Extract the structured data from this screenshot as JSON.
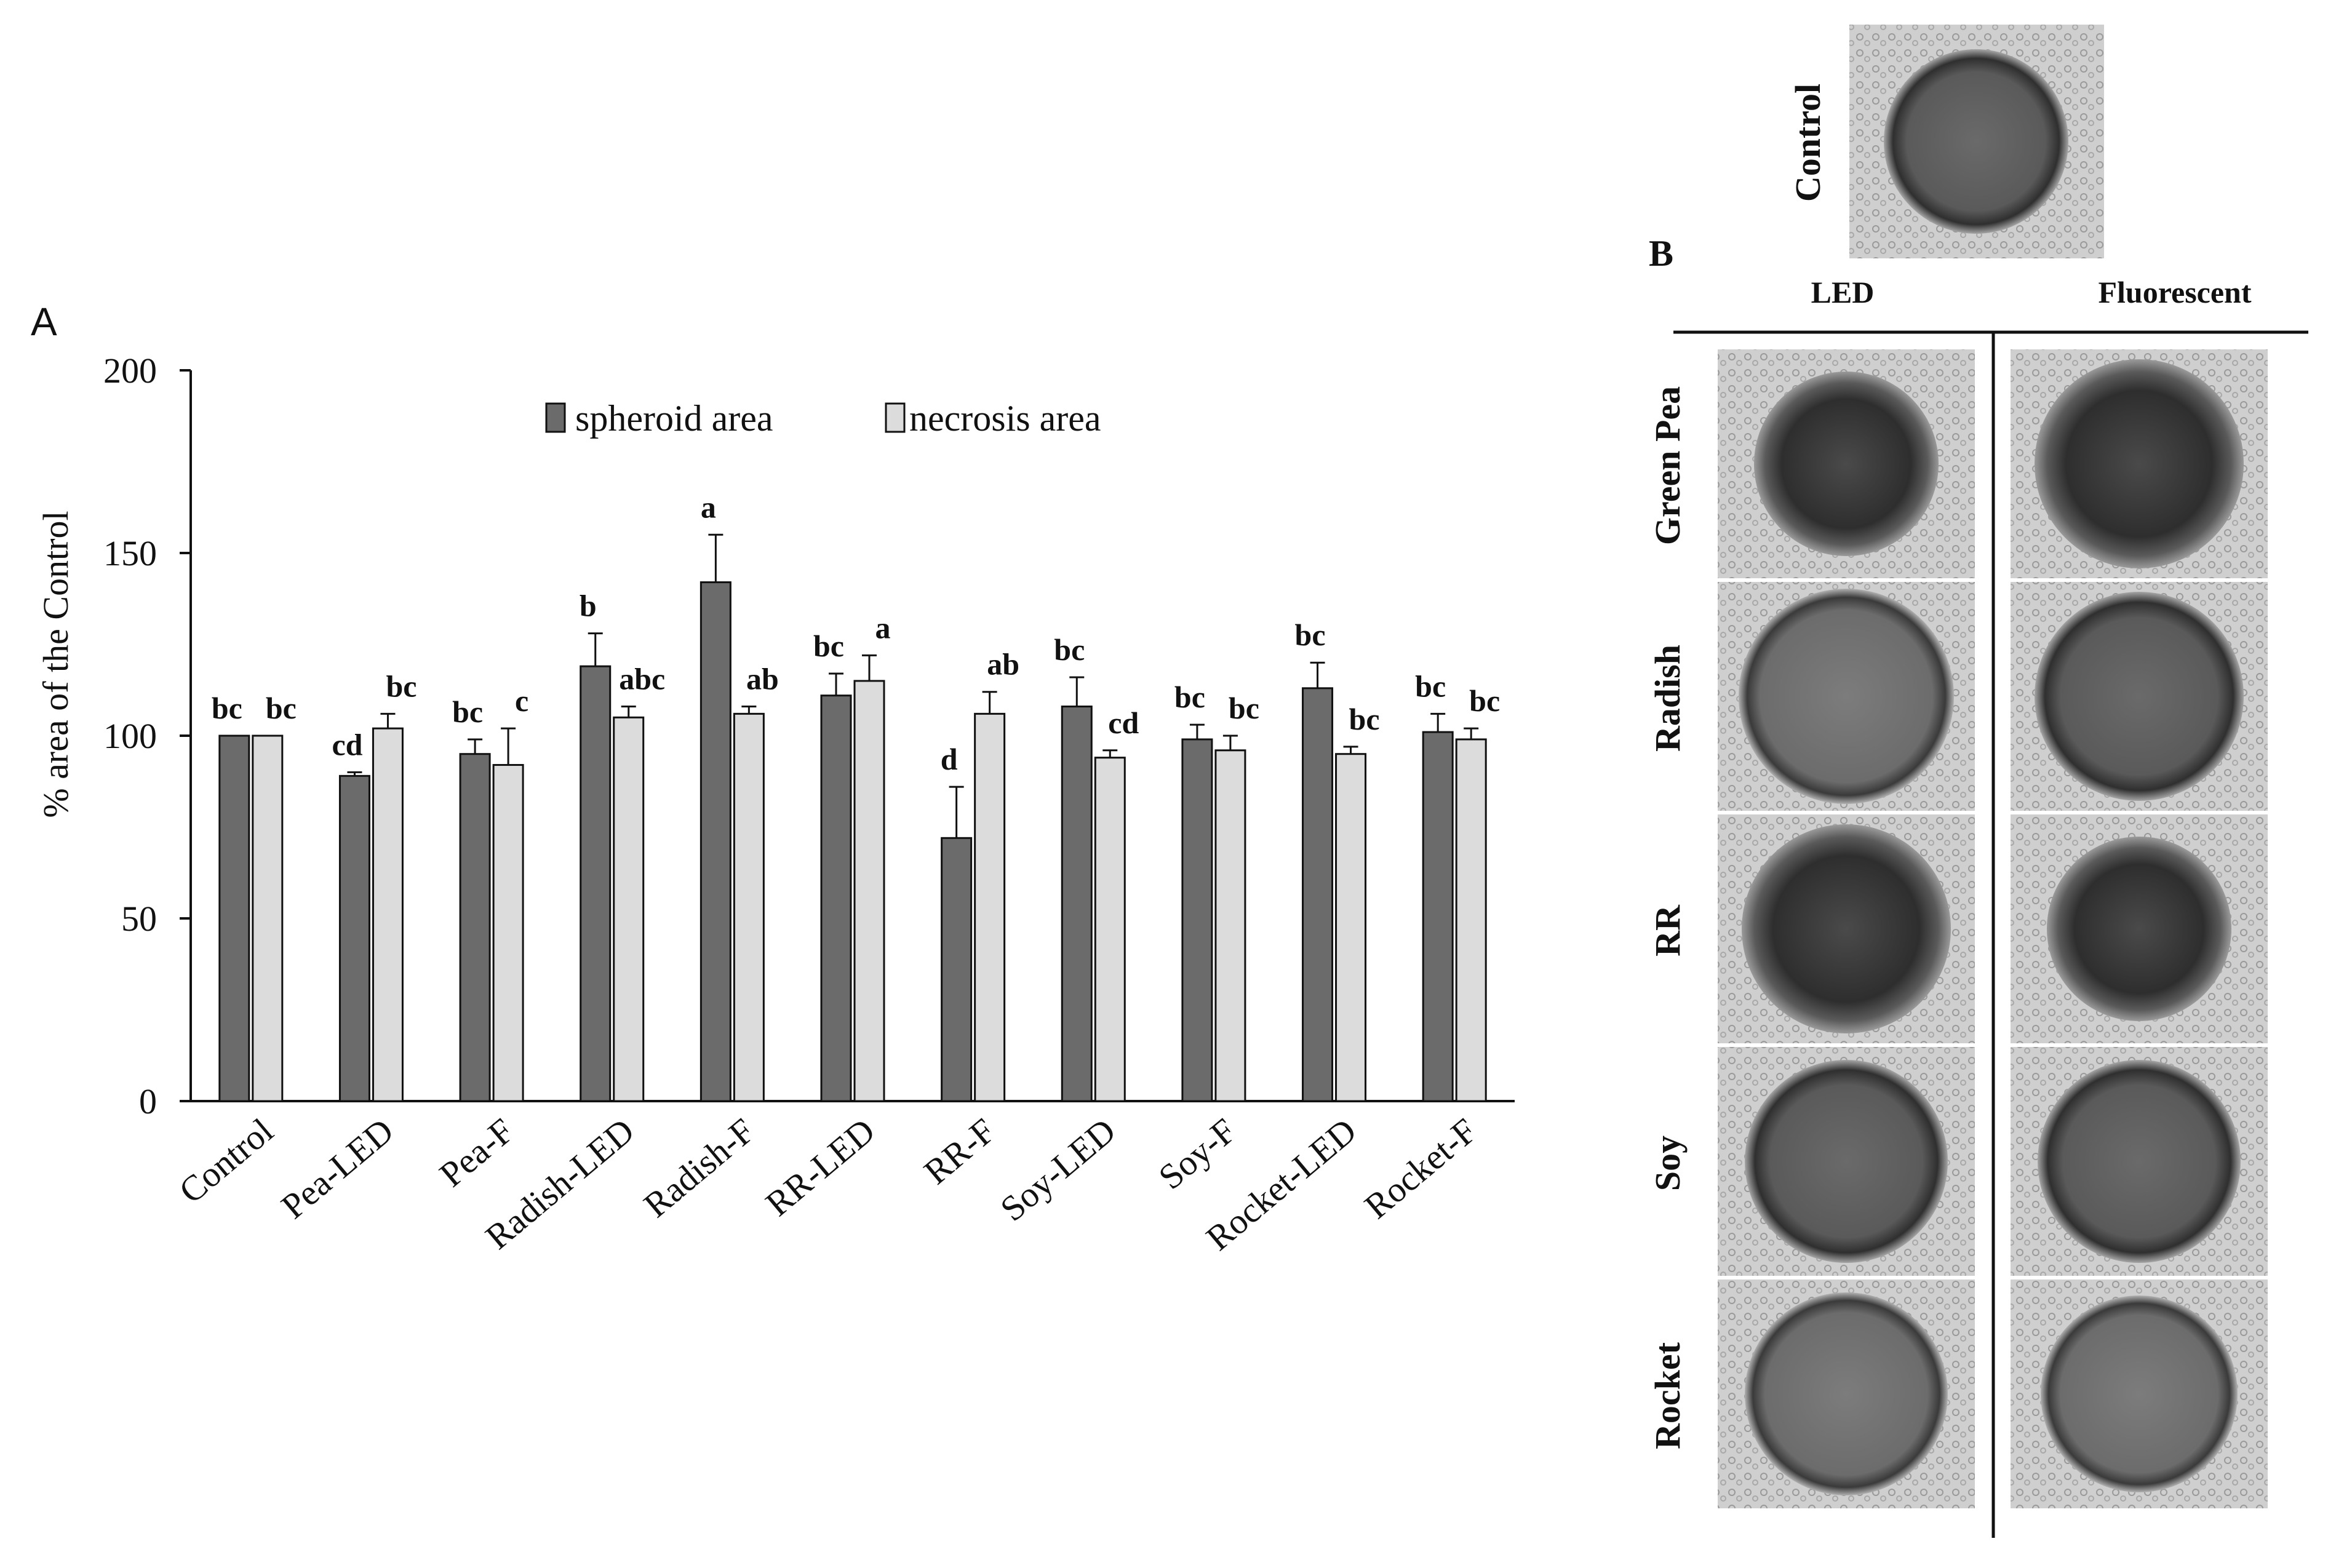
{
  "panel_a": {
    "letter": "A",
    "chart_data": {
      "type": "bar",
      "title": "",
      "xlabel": "",
      "ylabel": "% area of the Control",
      "ylim": [
        0,
        200
      ],
      "yticks": [
        0,
        50,
        100,
        150,
        200
      ],
      "grid": false,
      "legend_position": "top-center",
      "categories": [
        "Control",
        "Pea-LED",
        "Pea-F",
        "Radish-LED",
        "Radish-F",
        "RR-LED",
        "RR-F",
        "Soy-LED",
        "Soy-F",
        "Rocket-LED",
        "Rocket-F"
      ],
      "series": [
        {
          "name": "spheroid area",
          "color": "#6b6b6b",
          "values": [
            100,
            89,
            95,
            119,
            142,
            111,
            72,
            108,
            99,
            113,
            101
          ],
          "errors": [
            0,
            1,
            4,
            9,
            13,
            6,
            14,
            8,
            4,
            7,
            5
          ],
          "significance": [
            "bc",
            "cd",
            "bc",
            "b",
            "a",
            "bc",
            "d",
            "bc",
            "bc",
            "bc",
            "bc"
          ]
        },
        {
          "name": "necrosis area",
          "color": "#dcdcdc",
          "values": [
            100,
            102,
            92,
            105,
            106,
            115,
            106,
            94,
            96,
            95,
            99
          ],
          "errors": [
            0,
            4,
            10,
            3,
            2,
            7,
            6,
            2,
            4,
            2,
            3
          ],
          "significance": [
            "bc",
            "bc",
            "c",
            "abc",
            "ab",
            "a",
            "ab",
            "cd",
            "bc",
            "bc",
            "bc"
          ]
        }
      ]
    }
  },
  "panel_b": {
    "letter": "B",
    "control_label": "Control",
    "columns": [
      "LED",
      "Fluorescent"
    ],
    "rows": [
      "Green Pea",
      "Radish",
      "RR",
      "Soy",
      "Rocket"
    ],
    "image_tone": "#c9c9c9",
    "spheroid_tone": "#3a3a3a"
  }
}
